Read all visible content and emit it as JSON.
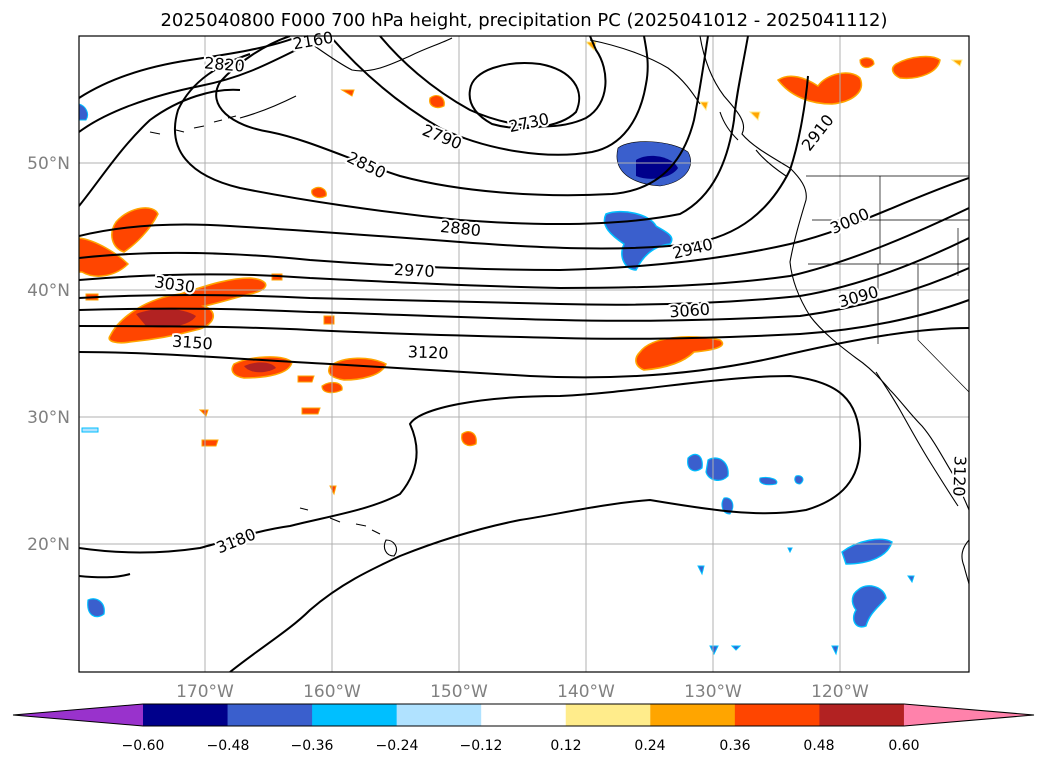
{
  "title": "2025040800 F000 700 hPa height, precipitation PC (2025041012 - 2025041112)",
  "map": {
    "lat_ticks": [
      "50°N",
      "40°N",
      "30°N",
      "20°N"
    ],
    "lon_ticks": [
      "170°W",
      "160°W",
      "150°W",
      "140°W",
      "130°W",
      "120°W"
    ],
    "grid": true
  },
  "contour_labels": [
    "2160",
    "2820",
    "2730",
    "2790",
    "2850",
    "2880",
    "2910",
    "2940",
    "2970",
    "3000",
    "3030",
    "3060",
    "3090",
    "3120",
    "3150",
    "3120",
    "3180"
  ],
  "colorbar": {
    "ticks": [
      "−0.60",
      "−0.48",
      "−0.36",
      "−0.24",
      "−0.12",
      "0.12",
      "0.24",
      "0.36",
      "0.48",
      "0.60"
    ],
    "colors": [
      "#9932cc",
      "#00008b",
      "#3a5fcd",
      "#00bfff",
      "#b0e2ff",
      "#ffffff",
      "#ffec8b",
      "#ffa500",
      "#ff4500",
      "#b22222",
      "#ff82ab"
    ]
  }
}
